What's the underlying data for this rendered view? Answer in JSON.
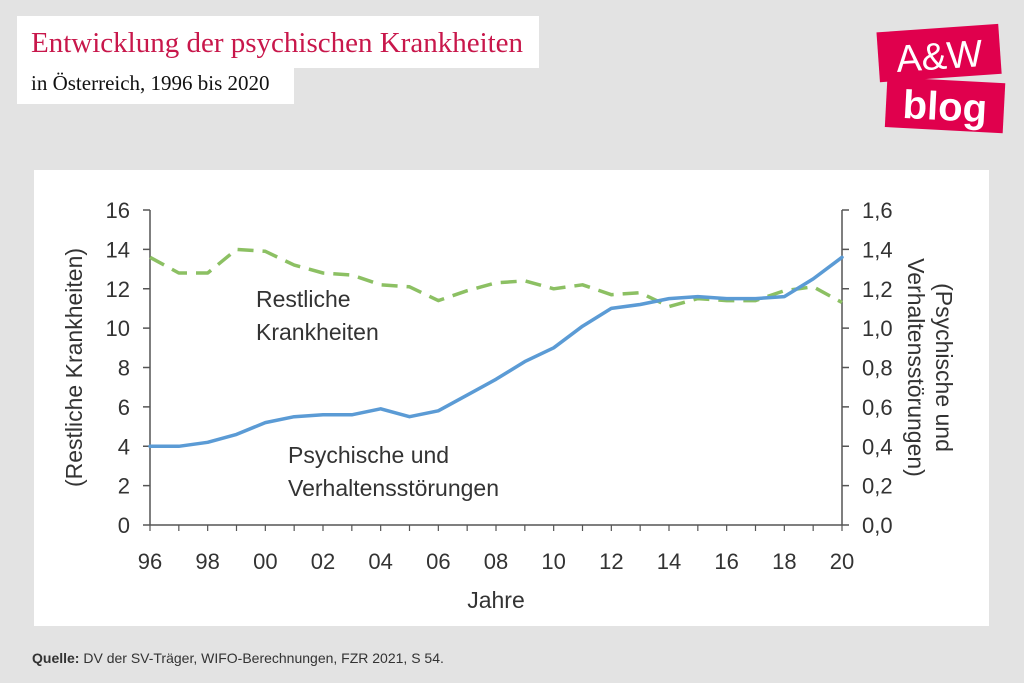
{
  "header": {
    "title": "Entwicklung der psychischen Krankheiten",
    "subtitle": "in Österreich, 1996 bis 2020"
  },
  "logo": {
    "line1": "A&W",
    "line2": "blog",
    "color": "#e0004d"
  },
  "source": {
    "label": "Quelle:",
    "text": "DV der SV-Träger, WIFO-Berechnungen, FZR 2021, S 54."
  },
  "chart_data": {
    "type": "line",
    "xlabel": "Jahre",
    "ylabel_left": "(Restliche Krankheiten)",
    "ylabel_right_line1": "(Psychische und",
    "ylabel_right_line2": "Verhaltensstörungen)",
    "ylim_left": [
      0,
      16
    ],
    "ylim_right": [
      0,
      1.6
    ],
    "left_ticks": [
      "0",
      "2",
      "4",
      "6",
      "8",
      "10",
      "12",
      "14",
      "16"
    ],
    "right_ticks": [
      "0,0",
      "0,2",
      "0,4",
      "0,6",
      "0,8",
      "1,0",
      "1,2",
      "1,4",
      "1,6"
    ],
    "x_tick_labels": [
      "96",
      "98",
      "00",
      "02",
      "04",
      "06",
      "08",
      "10",
      "12",
      "14",
      "16",
      "18",
      "20"
    ],
    "x_tick_years": [
      1996,
      1998,
      2000,
      2002,
      2004,
      2006,
      2008,
      2010,
      2012,
      2014,
      2016,
      2018,
      2020
    ],
    "xlim": [
      1996,
      2020
    ],
    "grid": false,
    "x": [
      1996,
      1997,
      1998,
      1999,
      2000,
      2001,
      2002,
      2003,
      2004,
      2005,
      2006,
      2007,
      2008,
      2009,
      2010,
      2011,
      2012,
      2013,
      2014,
      2015,
      2016,
      2017,
      2018,
      2019,
      2020
    ],
    "series": [
      {
        "axis": "left",
        "color": "#8cc063",
        "style": "dashed",
        "label_line1": "Restliche",
        "label_line2": "Krankheiten",
        "values": [
          13.6,
          12.8,
          12.8,
          14.0,
          13.9,
          13.2,
          12.8,
          12.7,
          12.2,
          12.1,
          11.4,
          11.9,
          12.3,
          12.4,
          12.0,
          12.2,
          11.7,
          11.8,
          11.1,
          11.5,
          11.4,
          11.4,
          11.9,
          12.1,
          11.3
        ]
      },
      {
        "axis": "right",
        "color": "#5b9bd5",
        "style": "solid",
        "label_line1": "Psychische und",
        "label_line2": "Verhaltensstörungen",
        "values": [
          0.4,
          0.4,
          0.42,
          0.46,
          0.52,
          0.55,
          0.56,
          0.56,
          0.59,
          0.55,
          0.58,
          0.66,
          0.74,
          0.83,
          0.9,
          1.01,
          1.1,
          1.12,
          1.15,
          1.16,
          1.15,
          1.15,
          1.16,
          1.25,
          1.36
        ]
      }
    ]
  }
}
